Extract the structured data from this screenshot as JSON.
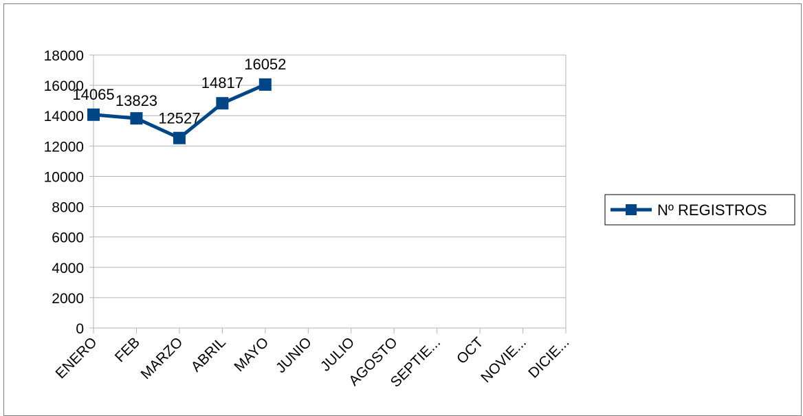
{
  "chart_data": {
    "type": "line",
    "title": "",
    "xlabel": "",
    "ylabel": "",
    "categories": [
      "ENERO",
      "FEB",
      "MARZO",
      "ABRIL",
      "MAYO",
      "JUNIO",
      "JULIO",
      "AGOSTO",
      "SEPTIE...",
      "OCT",
      "NOVIE...",
      "DICIE..."
    ],
    "series": [
      {
        "name": "Nº REGISTROS",
        "values": [
          14065,
          13823,
          12527,
          14817,
          16052,
          null,
          null,
          null,
          null,
          null,
          null,
          null
        ],
        "color": "#004586",
        "marker": "square"
      }
    ],
    "ylim": [
      0,
      18000
    ],
    "yticks": [
      0,
      2000,
      4000,
      6000,
      8000,
      10000,
      12000,
      14000,
      16000,
      18000
    ],
    "grid": "horizontal",
    "legend": "right"
  }
}
